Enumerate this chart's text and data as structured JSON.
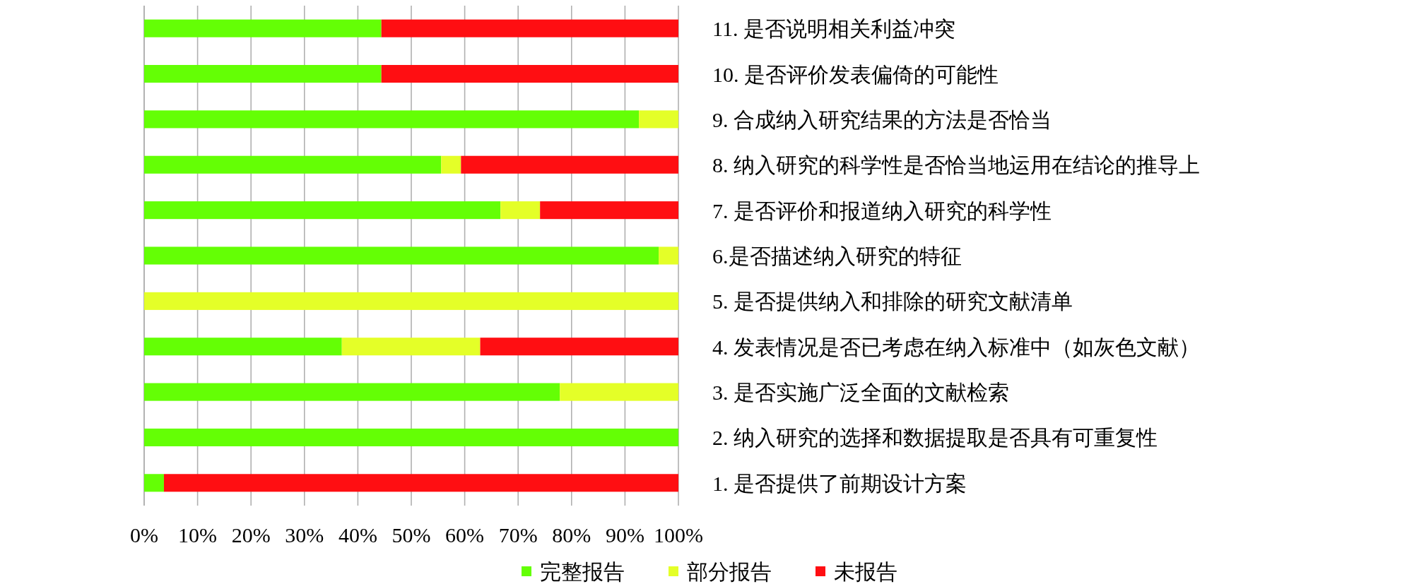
{
  "chart_data": {
    "type": "bar",
    "orientation": "horizontal",
    "stacked": true,
    "categories": [
      "11. 是否说明相关利益冲突",
      "10. 是否评价发表偏倚的可能性",
      "9. 合成纳入研究结果的方法是否恰当",
      "8. 纳入研究的科学性是否恰当地运用在结论的推导上",
      "7. 是否评价和报道纳入研究的科学性",
      "6.是否描述纳入研究的特征",
      "5. 是否提供纳入和排除的研究文献清单",
      "4. 发表情况是否已考虑在纳入标准中（如灰色文献）",
      "3. 是否实施广泛全面的文献检索",
      "2. 纳入研究的选择和数据提取是否具有可重复性",
      "1. 是否提供了前期设计方案"
    ],
    "series": [
      {
        "name": "完整报告",
        "color": "#64ff05",
        "values": [
          44.4,
          44.4,
          92.6,
          55.6,
          66.7,
          96.3,
          0,
          37.0,
          77.8,
          100,
          3.7
        ]
      },
      {
        "name": "部分报告",
        "color": "#e4ff28",
        "values": [
          0,
          0,
          7.4,
          3.7,
          7.4,
          3.7,
          100,
          25.9,
          22.2,
          0,
          0
        ]
      },
      {
        "name": "未报告",
        "color": "#ff0e12",
        "values": [
          55.6,
          55.6,
          0,
          40.7,
          25.9,
          0,
          0,
          37.1,
          0,
          0,
          96.3
        ]
      }
    ],
    "xlim": [
      0,
      100
    ],
    "xticks": [
      {
        "value": 0,
        "label": "0%"
      },
      {
        "value": 10,
        "label": "10%"
      },
      {
        "value": 20,
        "label": "20%"
      },
      {
        "value": 30,
        "label": "30%"
      },
      {
        "value": 40,
        "label": "40%"
      },
      {
        "value": 50,
        "label": "50%"
      },
      {
        "value": 60,
        "label": "60%"
      },
      {
        "value": 70,
        "label": "70%"
      },
      {
        "value": 80,
        "label": "80%"
      },
      {
        "value": 90,
        "label": "90%"
      },
      {
        "value": 100,
        "label": "100%"
      }
    ],
    "grid": "x",
    "legend": "bottom"
  }
}
